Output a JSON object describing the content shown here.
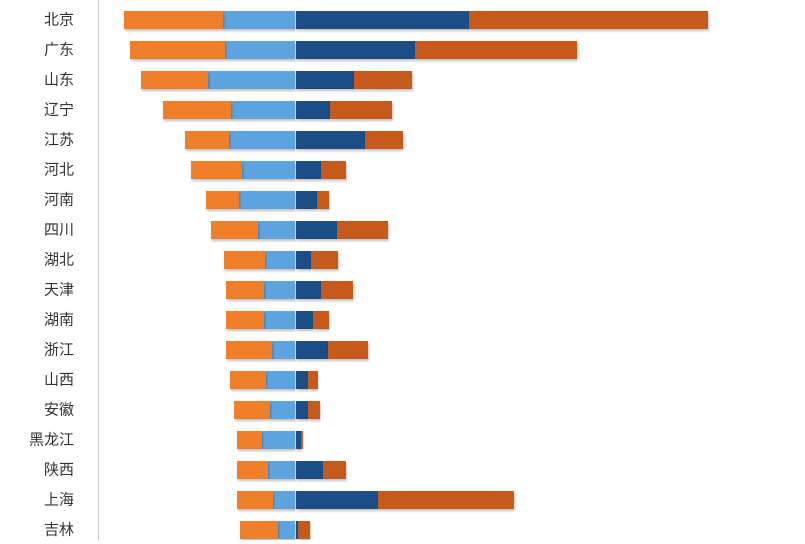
{
  "chart_data": {
    "type": "diverging-stacked-bar",
    "categories": [
      "北京",
      "广东",
      "山东",
      "辽宁",
      "江苏",
      "河北",
      "河南",
      "四川",
      "湖北",
      "天津",
      "湖南",
      "浙江",
      "山西",
      "安徽",
      "黑龙江",
      "陕西",
      "上海",
      "吉林"
    ],
    "series": [
      {
        "color": "#5ba3e0",
        "values": [
          -72,
          -70,
          -87,
          -64,
          -66,
          -53,
          -56,
          -37,
          -30,
          -31,
          -31,
          -23,
          -29,
          -25,
          -33,
          -27,
          -22,
          -17
        ]
      },
      {
        "color": "#f07f2c",
        "values": [
          -99,
          -95,
          -67,
          -68,
          -44,
          -51,
          -33,
          -47,
          -41,
          -38,
          -38,
          -46,
          -36,
          -36,
          -25,
          -31,
          -36,
          -38
        ]
      },
      {
        "color": "#1f4e84",
        "values": [
          174,
          120,
          59,
          35,
          70,
          26,
          22,
          42,
          16,
          26,
          18,
          33,
          13,
          13,
          6,
          28,
          83,
          3
        ]
      },
      {
        "color": "#c55a1a",
        "values": [
          239,
          162,
          58,
          62,
          38,
          25,
          12,
          51,
          27,
          32,
          16,
          40,
          10,
          12,
          2,
          23,
          136,
          12
        ]
      }
    ],
    "xlim": [
      -195,
      435
    ]
  }
}
